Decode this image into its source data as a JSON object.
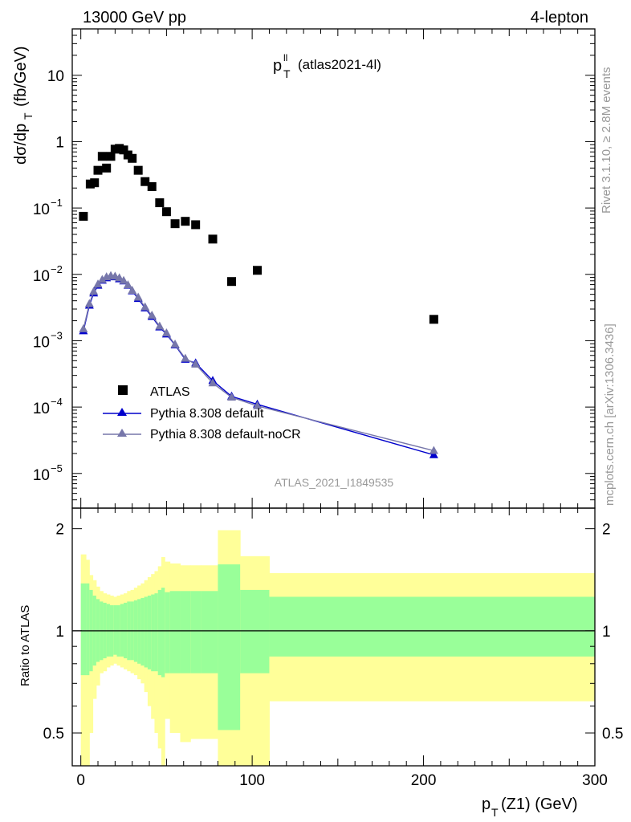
{
  "header": {
    "left": "13000 GeV pp",
    "right": "4-lepton"
  },
  "side_text": {
    "rivet": "Rivet 3.1.10, ≥ 2.8M events",
    "mcplots": "mcplots.cern.ch [arXiv:1306.3436]"
  },
  "plot_label": {
    "main": "p",
    "sup": "ll",
    "sub": "T",
    "tail": "(atlas2021-4l)"
  },
  "analysis_id": "ATLAS_2021_I1849535",
  "y_axis": {
    "main": "dσ/dp",
    "sub": "T",
    "units": "(fb/GeV)",
    "ratio": "Ratio to ATLAS"
  },
  "x_axis": {
    "main": "p",
    "sub": "T",
    "tail": "(Z1) (GeV)"
  },
  "legend": {
    "atlas": "ATLAS",
    "default": "Pythia 8.308 default",
    "nocr": "Pythia 8.308 default-noCR"
  },
  "colors": {
    "data": "#000000",
    "default": "#0000cc",
    "nocr": "#7777aa",
    "band_inner": "#99ff99",
    "band_outer": "#ffff99",
    "watermark": "#999999"
  },
  "chart_data": {
    "type": "scatter",
    "x_range": [
      -5,
      300
    ],
    "y_range_log": [
      3e-06,
      50
    ],
    "y_scale": "log",
    "ratio_range": [
      0.4,
      2.3
    ],
    "x_ticks": [
      "0",
      "100",
      "200",
      "300"
    ],
    "y_ticks": [
      "10^-5",
      "10^-4",
      "10^-3",
      "10^-2",
      "10^-1",
      "1",
      "10"
    ],
    "ratio_ticks": [
      "0.5",
      "1",
      "2"
    ],
    "series": [
      {
        "name": "ATLAS",
        "marker": "square",
        "x": [
          1.5,
          5.5,
          8,
          10,
          12.5,
          15,
          17.5,
          20,
          22.5,
          25,
          27.5,
          30,
          33.5,
          37.5,
          41.5,
          46,
          50,
          55,
          61,
          67,
          77,
          88,
          103,
          206
        ],
        "y": [
          0.075,
          0.23,
          0.24,
          0.37,
          0.6,
          0.4,
          0.6,
          0.77,
          0.79,
          0.75,
          0.63,
          0.56,
          0.37,
          0.25,
          0.21,
          0.12,
          0.088,
          0.058,
          0.063,
          0.056,
          0.034,
          0.0078,
          0.0115,
          0.0021
        ]
      },
      {
        "name": "Pythia 8.308 default",
        "marker": "triangle",
        "x": [
          1.5,
          5,
          7.5,
          10,
          12.5,
          15,
          17.5,
          20,
          22.5,
          25,
          27.5,
          30,
          33.5,
          37.5,
          41.5,
          46,
          50,
          55,
          61,
          67,
          77,
          88,
          103,
          206
        ],
        "y": [
          0.0014,
          0.0034,
          0.0052,
          0.0068,
          0.0081,
          0.0088,
          0.0092,
          0.0091,
          0.0085,
          0.0079,
          0.0068,
          0.0056,
          0.0043,
          0.0031,
          0.0023,
          0.0016,
          0.00125,
          0.00086,
          0.00052,
          0.00046,
          0.00025,
          0.000145,
          0.00011,
          1.9e-05
        ]
      },
      {
        "name": "Pythia 8.308 default-noCR",
        "marker": "triangle",
        "x": [
          1.5,
          5,
          7.5,
          10,
          12.5,
          15,
          17.5,
          20,
          22.5,
          25,
          27.5,
          30,
          33.5,
          37.5,
          41.5,
          46,
          50,
          55,
          61,
          67,
          77,
          88,
          103,
          206
        ],
        "y": [
          0.0015,
          0.0036,
          0.0055,
          0.0071,
          0.0083,
          0.0091,
          0.0095,
          0.0093,
          0.0088,
          0.008,
          0.0069,
          0.0057,
          0.0045,
          0.0032,
          0.0024,
          0.00165,
          0.0013,
          0.00088,
          0.00054,
          0.00044,
          0.00023,
          0.00014,
          0.000104,
          2.2e-05
        ]
      }
    ],
    "ratio_bands": [
      {
        "x0": 0,
        "x1": 3,
        "in_lo": 0.74,
        "in_hi": 1.38,
        "out_lo": 0.32,
        "out_hi": 1.68
      },
      {
        "x0": 3,
        "x1": 5,
        "in_lo": 0.74,
        "in_hi": 1.38,
        "out_lo": 0.36,
        "out_hi": 1.62
      },
      {
        "x0": 5,
        "x1": 7,
        "in_lo": 0.76,
        "in_hi": 1.32,
        "out_lo": 0.5,
        "out_hi": 1.46
      },
      {
        "x0": 7,
        "x1": 9,
        "in_lo": 0.79,
        "in_hi": 1.27,
        "out_lo": 0.63,
        "out_hi": 1.41
      },
      {
        "x0": 9,
        "x1": 11,
        "in_lo": 0.81,
        "in_hi": 1.24,
        "out_lo": 0.69,
        "out_hi": 1.35
      },
      {
        "x0": 11,
        "x1": 13,
        "in_lo": 0.82,
        "in_hi": 1.22,
        "out_lo": 0.75,
        "out_hi": 1.31
      },
      {
        "x0": 13,
        "x1": 15,
        "in_lo": 0.83,
        "in_hi": 1.21,
        "out_lo": 0.76,
        "out_hi": 1.29
      },
      {
        "x0": 15,
        "x1": 17,
        "in_lo": 0.84,
        "in_hi": 1.2,
        "out_lo": 0.78,
        "out_hi": 1.28
      },
      {
        "x0": 17,
        "x1": 19,
        "in_lo": 0.84,
        "in_hi": 1.19,
        "out_lo": 0.79,
        "out_hi": 1.27
      },
      {
        "x0": 19,
        "x1": 21,
        "in_lo": 0.85,
        "in_hi": 1.19,
        "out_lo": 0.8,
        "out_hi": 1.26
      },
      {
        "x0": 21,
        "x1": 23,
        "in_lo": 0.84,
        "in_hi": 1.19,
        "out_lo": 0.79,
        "out_hi": 1.27
      },
      {
        "x0": 23,
        "x1": 25,
        "in_lo": 0.84,
        "in_hi": 1.2,
        "out_lo": 0.78,
        "out_hi": 1.28
      },
      {
        "x0": 25,
        "x1": 27,
        "in_lo": 0.83,
        "in_hi": 1.21,
        "out_lo": 0.77,
        "out_hi": 1.29
      },
      {
        "x0": 27,
        "x1": 29,
        "in_lo": 0.82,
        "in_hi": 1.22,
        "out_lo": 0.76,
        "out_hi": 1.31
      },
      {
        "x0": 29,
        "x1": 31,
        "in_lo": 0.82,
        "in_hi": 1.22,
        "out_lo": 0.75,
        "out_hi": 1.32
      },
      {
        "x0": 31,
        "x1": 33,
        "in_lo": 0.81,
        "in_hi": 1.23,
        "out_lo": 0.74,
        "out_hi": 1.34
      },
      {
        "x0": 33,
        "x1": 35,
        "in_lo": 0.8,
        "in_hi": 1.24,
        "out_lo": 0.72,
        "out_hi": 1.36
      },
      {
        "x0": 35,
        "x1": 37,
        "in_lo": 0.79,
        "in_hi": 1.25,
        "out_lo": 0.7,
        "out_hi": 1.38
      },
      {
        "x0": 37,
        "x1": 39,
        "in_lo": 0.78,
        "in_hi": 1.26,
        "out_lo": 0.66,
        "out_hi": 1.41
      },
      {
        "x0": 39,
        "x1": 41,
        "in_lo": 0.77,
        "in_hi": 1.27,
        "out_lo": 0.6,
        "out_hi": 1.44
      },
      {
        "x0": 41,
        "x1": 43,
        "in_lo": 0.76,
        "in_hi": 1.28,
        "out_lo": 0.55,
        "out_hi": 1.47
      },
      {
        "x0": 43,
        "x1": 45,
        "in_lo": 0.76,
        "in_hi": 1.29,
        "out_lo": 0.5,
        "out_hi": 1.5
      },
      {
        "x0": 45,
        "x1": 47,
        "in_lo": 0.74,
        "in_hi": 1.32,
        "out_lo": 0.45,
        "out_hi": 1.55
      },
      {
        "x0": 47,
        "x1": 49,
        "in_lo": 0.73,
        "in_hi": 1.34,
        "out_lo": 0.35,
        "out_hi": 1.65
      },
      {
        "x0": 49,
        "x1": 52,
        "in_lo": 0.75,
        "in_hi": 1.3,
        "out_lo": 0.55,
        "out_hi": 1.6
      },
      {
        "x0": 52,
        "x1": 58,
        "in_lo": 0.75,
        "in_hi": 1.31,
        "out_lo": 0.5,
        "out_hi": 1.58
      },
      {
        "x0": 58,
        "x1": 64,
        "in_lo": 0.75,
        "in_hi": 1.31,
        "out_lo": 0.47,
        "out_hi": 1.56
      },
      {
        "x0": 64,
        "x1": 70,
        "in_lo": 0.75,
        "in_hi": 1.31,
        "out_lo": 0.48,
        "out_hi": 1.56
      },
      {
        "x0": 70,
        "x1": 80,
        "in_lo": 0.75,
        "in_hi": 1.31,
        "out_lo": 0.48,
        "out_hi": 1.56
      },
      {
        "x0": 80,
        "x1": 93,
        "in_lo": 0.51,
        "in_hi": 1.57,
        "out_lo": 0.2,
        "out_hi": 1.98
      },
      {
        "x0": 93,
        "x1": 110,
        "in_lo": 0.75,
        "in_hi": 1.32,
        "out_lo": 0.4,
        "out_hi": 1.66
      },
      {
        "x0": 110,
        "x1": 300,
        "in_lo": 0.84,
        "in_hi": 1.26,
        "out_lo": 0.62,
        "out_hi": 1.48
      }
    ]
  }
}
